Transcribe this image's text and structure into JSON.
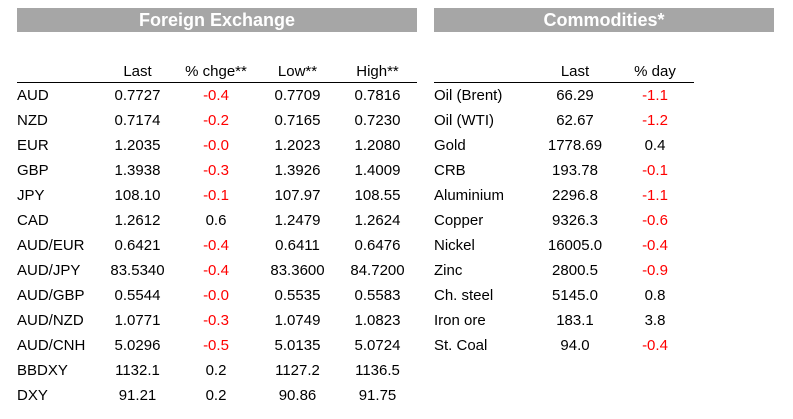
{
  "fx": {
    "title": "Foreign Exchange",
    "headers": [
      "",
      "Last",
      "% chge**",
      "Low**",
      "High**"
    ],
    "rows": [
      {
        "name": "AUD",
        "last": "0.7727",
        "chg": "-0.4",
        "low": "0.7709",
        "high": "0.7816"
      },
      {
        "name": "NZD",
        "last": "0.7174",
        "chg": "-0.2",
        "low": "0.7165",
        "high": "0.7230"
      },
      {
        "name": "EUR",
        "last": "1.2035",
        "chg": "-0.0",
        "low": "1.2023",
        "high": "1.2080"
      },
      {
        "name": "GBP",
        "last": "1.3938",
        "chg": "-0.3",
        "low": "1.3926",
        "high": "1.4009"
      },
      {
        "name": "JPY",
        "last": "108.10",
        "chg": "-0.1",
        "low": "107.97",
        "high": "108.55"
      },
      {
        "name": "CAD",
        "last": "1.2612",
        "chg": "0.6",
        "low": "1.2479",
        "high": "1.2624"
      },
      {
        "name": "AUD/EUR",
        "last": "0.6421",
        "chg": "-0.4",
        "low": "0.6411",
        "high": "0.6476"
      },
      {
        "name": "AUD/JPY",
        "last": "83.5340",
        "chg": "-0.4",
        "low": "83.3600",
        "high": "84.7200"
      },
      {
        "name": "AUD/GBP",
        "last": "0.5544",
        "chg": "-0.0",
        "low": "0.5535",
        "high": "0.5583"
      },
      {
        "name": "AUD/NZD",
        "last": "1.0771",
        "chg": "-0.3",
        "low": "1.0749",
        "high": "1.0823"
      },
      {
        "name": "AUD/CNH",
        "last": "5.0296",
        "chg": "-0.5",
        "low": "5.0135",
        "high": "5.0724"
      },
      {
        "name": "BBDXY",
        "last": "1132.1",
        "chg": "0.2",
        "low": "1127.2",
        "high": "1136.5"
      },
      {
        "name": "DXY",
        "last": "91.21",
        "chg": "0.2",
        "low": "90.86",
        "high": "91.75"
      }
    ]
  },
  "commodities": {
    "title": "Commodities*",
    "headers": [
      "",
      "Last",
      "% day"
    ],
    "rows": [
      {
        "name": "Oil (Brent)",
        "last": "66.29",
        "chg": "-1.1"
      },
      {
        "name": "Oil (WTI)",
        "last": "62.67",
        "chg": "-1.2"
      },
      {
        "name": "Gold",
        "last": "1778.69",
        "chg": "0.4"
      },
      {
        "name": "CRB",
        "last": "193.78",
        "chg": "-0.1"
      },
      {
        "name": "Aluminium",
        "last": "2296.8",
        "chg": "-1.1"
      },
      {
        "name": "Copper",
        "last": "9326.3",
        "chg": "-0.6"
      },
      {
        "name": "Nickel",
        "last": "16005.0",
        "chg": "-0.4"
      },
      {
        "name": "Zinc",
        "last": "2800.5",
        "chg": "-0.9"
      },
      {
        "name": "Ch. steel",
        "last": "5145.0",
        "chg": "0.8"
      },
      {
        "name": "Iron ore",
        "last": "183.1",
        "chg": "3.8"
      },
      {
        "name": "St. Coal",
        "last": "94.0",
        "chg": "-0.4"
      }
    ]
  },
  "colors": {
    "banner_bg": "#a6a6a6",
    "banner_text": "#ffffff",
    "negative": "#ff0000",
    "positive": "#000000"
  }
}
